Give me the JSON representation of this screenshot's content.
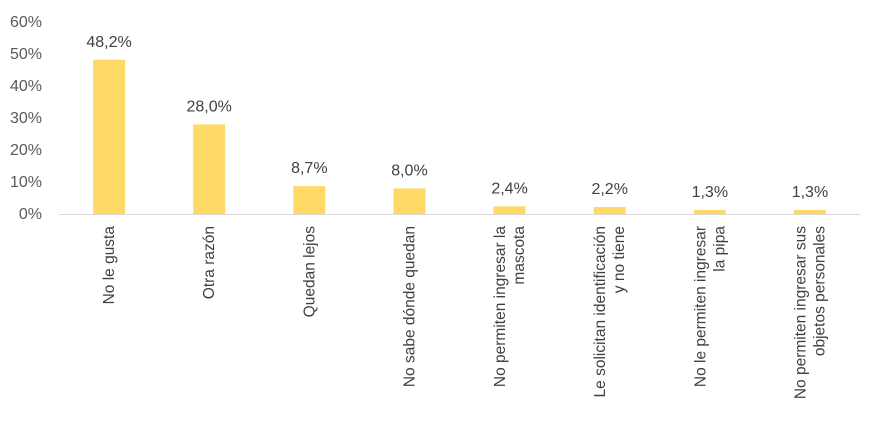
{
  "chart_data": {
    "type": "bar",
    "categories": [
      [
        "No le gusta"
      ],
      [
        "Otra razón"
      ],
      [
        "Quedan lejos"
      ],
      [
        "No sabe dónde quedan"
      ],
      [
        "No permiten ingresar la",
        "mascota"
      ],
      [
        "Le solicitan identificación",
        "y no tiene"
      ],
      [
        "No le permiten ingresar",
        "la pipa"
      ],
      [
        "No permiten ingresar sus",
        "objetos personales"
      ]
    ],
    "values": [
      48.2,
      28.0,
      8.7,
      8.0,
      2.4,
      2.2,
      1.3,
      1.3
    ],
    "data_labels": [
      "48,2%",
      "28,0%",
      "8,7%",
      "8,0%",
      "2,4%",
      "2,2%",
      "1,3%",
      "1,3%"
    ],
    "y_ticks": [
      "0%",
      "10%",
      "20%",
      "30%",
      "40%",
      "50%",
      "60%"
    ],
    "ylim": [
      0,
      60
    ],
    "grid": false,
    "legend": "none",
    "colors": {
      "bar": "#FFD966",
      "axis": "#D9D9D9"
    }
  }
}
